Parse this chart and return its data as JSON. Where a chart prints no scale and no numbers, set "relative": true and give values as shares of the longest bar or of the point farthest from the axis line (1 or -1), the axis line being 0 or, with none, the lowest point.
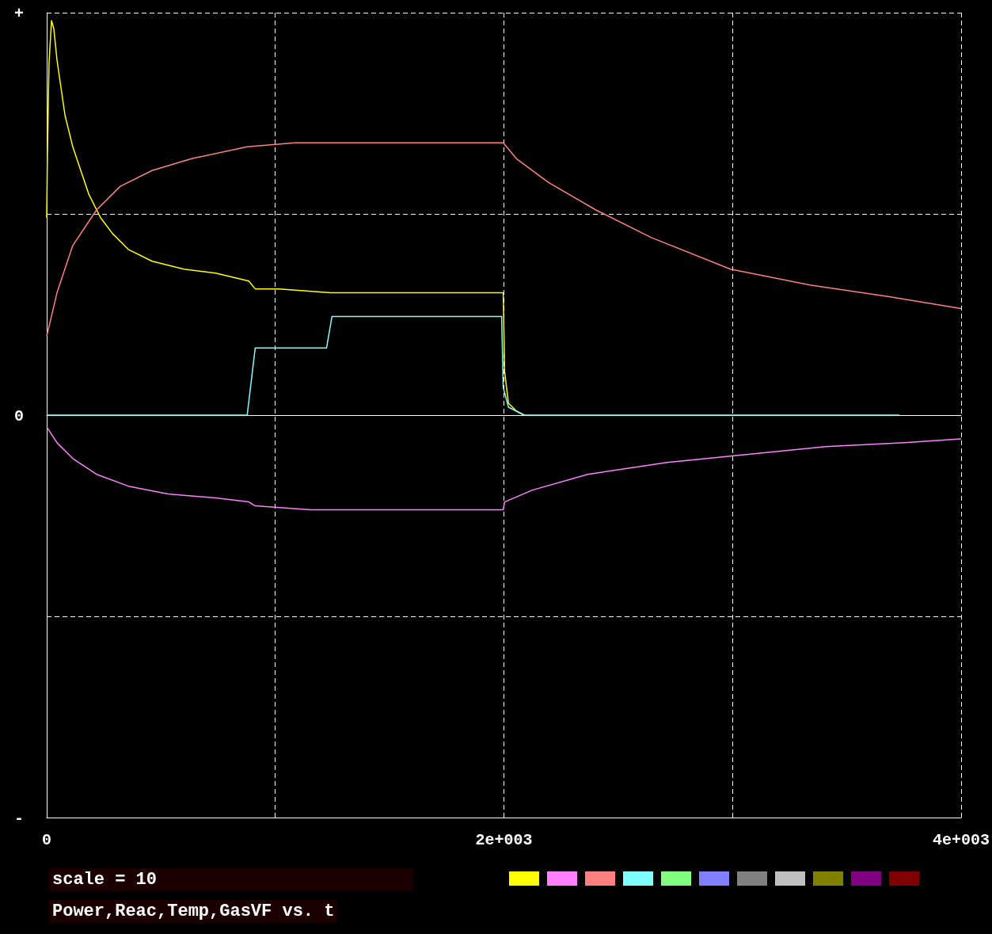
{
  "chart_data": {
    "type": "line",
    "title": "Power,Reac,Temp,GasVF vs. t",
    "relative": true,
    "grid": true,
    "marker": "none",
    "line_style": "solid",
    "xlim": [
      0,
      4000
    ],
    "xticks": [
      0,
      {
        "value": 1000,
        "label": null
      },
      {
        "value": 2000,
        "label": "2e+003"
      },
      {
        "value": 3000,
        "label": null
      },
      {
        "value": 4000,
        "label": "4e+003"
      }
    ],
    "annotations": [
      "+",
      "0",
      "-",
      "scale = 10"
    ],
    "series": [
      {
        "color": "#ffff00",
        "x": [
          0,
          3,
          10,
          21,
          31,
          45,
          80,
          114,
          149,
          184,
          236,
          288,
          357,
          461,
          600,
          739,
          884,
          912,
          1016,
          1241,
          1258,
          1501,
          1997,
          2003,
          2020,
          2055,
          2089
        ],
        "values": [
          0.5,
          0.66,
          0.89,
          1.0,
          0.98,
          0.9,
          0.76,
          0.68,
          0.62,
          0.56,
          0.5,
          0.46,
          0.42,
          0.39,
          0.37,
          0.36,
          0.34,
          0.32,
          0.32,
          0.31,
          0.31,
          0.31,
          0.31,
          0.11,
          0.03,
          0.01,
          0
        ]
      },
      {
        "color": "#ff80ff",
        "x": [
          0,
          45,
          114,
          218,
          357,
          530,
          739,
          884,
          912,
          1154,
          1241,
          1997,
          2003,
          2125,
          2367,
          2714,
          3060,
          3407,
          3754,
          4000
        ],
        "values": [
          -0.03,
          -0.07,
          -0.11,
          -0.15,
          -0.18,
          -0.2,
          -0.21,
          -0.22,
          -0.23,
          -0.24,
          -0.24,
          -0.24,
          -0.22,
          -0.19,
          -0.15,
          -0.12,
          -0.1,
          -0.08,
          -0.07,
          -0.06
        ]
      },
      {
        "color": "#ff8080",
        "x": [
          0,
          45,
          114,
          218,
          322,
          461,
          634,
          877,
          1085,
          1414,
          1997,
          2055,
          2194,
          2402,
          2645,
          2991,
          3338,
          3685,
          4000
        ],
        "values": [
          0.2,
          0.31,
          0.43,
          0.52,
          0.58,
          0.62,
          0.65,
          0.68,
          0.69,
          0.69,
          0.69,
          0.65,
          0.59,
          0.52,
          0.45,
          0.37,
          0.33,
          0.3,
          0.27
        ]
      },
      {
        "color": "#80ffff",
        "x": [
          0,
          877,
          912,
          1224,
          1248,
          1990,
          1997,
          2020,
          2089,
          3730
        ],
        "values": [
          0,
          0,
          0.17,
          0.17,
          0.25,
          0.25,
          0.07,
          0.02,
          0,
          0
        ]
      }
    ]
  }
}
